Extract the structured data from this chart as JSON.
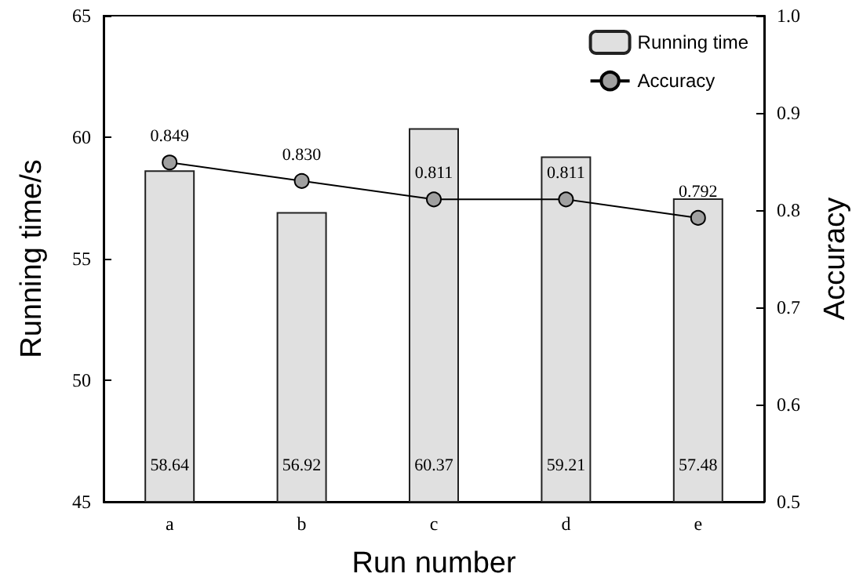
{
  "chart_data": {
    "type": "bar",
    "xlabel": "Run number",
    "ylabel": "Running time/s",
    "y2label": "Accuracy",
    "categories": [
      "a",
      "b",
      "c",
      "d",
      "e"
    ],
    "series": [
      {
        "name": "Running time",
        "color": "#e0e0e0",
        "values": [
          58.64,
          56.92,
          60.37,
          59.21,
          57.48
        ]
      },
      {
        "name": "Accuracy",
        "type": "line",
        "axis": "y2",
        "color": "#a0a0a0",
        "marker": "circle",
        "values": [
          0.849,
          0.83,
          0.811,
          0.811,
          0.792
        ],
        "value_labels": [
          "0.849",
          "0.830",
          "0.811",
          "0.811",
          "0.792"
        ]
      }
    ],
    "data_labels": true,
    "ylim": [
      45,
      65
    ],
    "yticks": [
      45,
      50,
      55,
      60,
      65
    ],
    "y2lim": [
      0.5,
      1.0
    ],
    "y2ticks": [
      {
        "value": 0.5,
        "label": "0.5"
      },
      {
        "value": 0.6,
        "label": "0.6"
      },
      {
        "value": 0.7,
        "label": "0.7"
      },
      {
        "value": 0.8,
        "label": "0.8"
      },
      {
        "value": 0.9,
        "label": "0.9"
      },
      {
        "value": 1.0,
        "label": "1.0"
      }
    ],
    "grid": false,
    "legend": "top right"
  }
}
